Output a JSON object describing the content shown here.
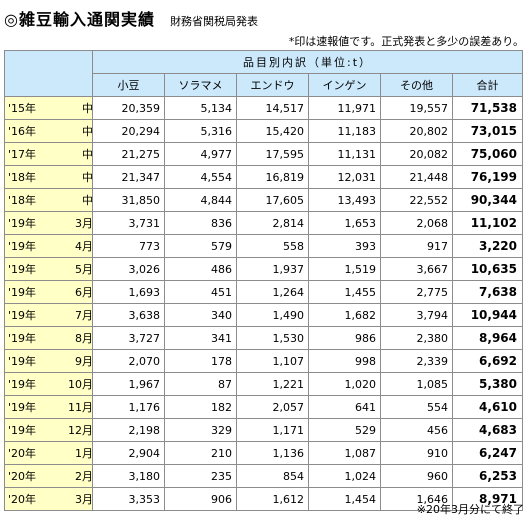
{
  "title": {
    "main": "◎雑豆輸入通関実績",
    "source": "財務省関税局発表"
  },
  "note": "*印は速報値です。正式発表と多少の誤差あり。",
  "table": {
    "group_header": "品目別内訳（単位:t）",
    "columns": [
      "小豆",
      "ソラマメ",
      "エンドウ",
      "インゲン",
      "その他",
      "合計"
    ],
    "rows": [
      {
        "year": "'15年",
        "month": "中",
        "values": [
          "20,359",
          "5,134",
          "14,517",
          "11,971",
          "19,557"
        ],
        "total": "71,538"
      },
      {
        "year": "'16年",
        "month": "中",
        "values": [
          "20,294",
          "5,316",
          "15,420",
          "11,183",
          "20,802"
        ],
        "total": "73,015"
      },
      {
        "year": "'17年",
        "month": "中",
        "values": [
          "21,275",
          "4,977",
          "17,595",
          "11,131",
          "20,082"
        ],
        "total": "75,060"
      },
      {
        "year": "'18年",
        "month": "中",
        "values": [
          "21,347",
          "4,554",
          "16,819",
          "12,031",
          "21,448"
        ],
        "total": "76,199"
      },
      {
        "year": "'18年",
        "month": "中",
        "values": [
          "31,850",
          "4,844",
          "17,605",
          "13,493",
          "22,552"
        ],
        "total": "90,344"
      },
      {
        "year": "'19年",
        "month": "3月",
        "values": [
          "3,731",
          "836",
          "2,814",
          "1,653",
          "2,068"
        ],
        "total": "11,102"
      },
      {
        "year": "'19年",
        "month": "4月",
        "values": [
          "773",
          "579",
          "558",
          "393",
          "917"
        ],
        "total": "3,220"
      },
      {
        "year": "'19年",
        "month": "5月",
        "values": [
          "3,026",
          "486",
          "1,937",
          "1,519",
          "3,667"
        ],
        "total": "10,635"
      },
      {
        "year": "'19年",
        "month": "6月",
        "values": [
          "1,693",
          "451",
          "1,264",
          "1,455",
          "2,775"
        ],
        "total": "7,638"
      },
      {
        "year": "'19年",
        "month": "7月",
        "values": [
          "3,638",
          "340",
          "1,490",
          "1,682",
          "3,794"
        ],
        "total": "10,944"
      },
      {
        "year": "'19年",
        "month": "8月",
        "values": [
          "3,727",
          "341",
          "1,530",
          "986",
          "2,380"
        ],
        "total": "8,964"
      },
      {
        "year": "'19年",
        "month": "9月",
        "values": [
          "2,070",
          "178",
          "1,107",
          "998",
          "2,339"
        ],
        "total": "6,692"
      },
      {
        "year": "'19年",
        "month": "10月",
        "values": [
          "1,967",
          "87",
          "1,221",
          "1,020",
          "1,085"
        ],
        "total": "5,380"
      },
      {
        "year": "'19年",
        "month": "11月",
        "values": [
          "1,176",
          "182",
          "2,057",
          "641",
          "554"
        ],
        "total": "4,610"
      },
      {
        "year": "'19年",
        "month": "12月",
        "values": [
          "2,198",
          "329",
          "1,171",
          "529",
          "456"
        ],
        "total": "4,683"
      },
      {
        "year": "'20年",
        "month": "1月",
        "values": [
          "2,904",
          "210",
          "1,136",
          "1,087",
          "910"
        ],
        "total": "6,247"
      },
      {
        "year": "'20年",
        "month": "2月",
        "values": [
          "3,180",
          "235",
          "854",
          "1,024",
          "960"
        ],
        "total": "6,253"
      },
      {
        "year": "'20年",
        "month": "3月",
        "values": [
          "3,353",
          "906",
          "1,612",
          "1,454",
          "1,646"
        ],
        "total": "8,971"
      }
    ]
  },
  "footnote": "※20年3月分にて終了",
  "colors": {
    "header_bg": "#cce8fb",
    "label_bg": "#ffffc6",
    "border": "#8c8c8c"
  }
}
